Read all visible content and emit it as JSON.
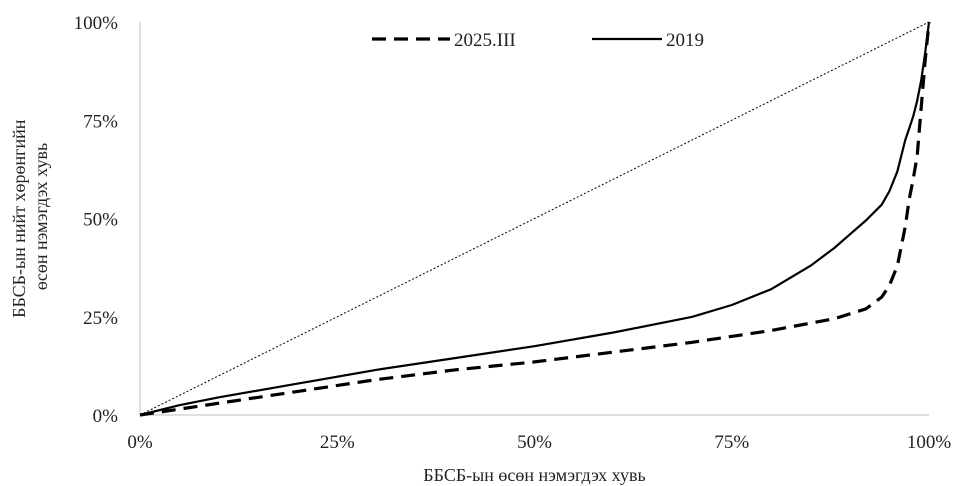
{
  "chart_data": {
    "type": "line",
    "title": "",
    "xlabel": "ББСБ-ын өсөн нэмэгдэх хувь",
    "ylabel": "ББСБ-ын нийт хөрөнгийн өсөн нэмэгдэх хувь",
    "xlim": [
      0,
      100
    ],
    "ylim": [
      0,
      100
    ],
    "x_ticks": [
      "0%",
      "25%",
      "50%",
      "75%",
      "100%"
    ],
    "y_ticks": [
      "0%",
      "25%",
      "50%",
      "75%",
      "100%"
    ],
    "grid": false,
    "legend_position": "top-center",
    "series": [
      {
        "name": "2025.III",
        "style": "dashed",
        "color": "#000000",
        "x": [
          0,
          5,
          10,
          20,
          30,
          40,
          50,
          60,
          70,
          80,
          88,
          92,
          94,
          95,
          96,
          97,
          97.5,
          98,
          98.5,
          99,
          99.5,
          100
        ],
        "y": [
          0,
          1.5,
          3,
          6,
          9,
          11.5,
          13.5,
          16,
          18.5,
          21.5,
          24.5,
          27,
          30,
          33,
          38,
          48,
          55,
          60,
          66,
          78,
          90,
          100
        ]
      },
      {
        "name": "2019",
        "style": "solid",
        "color": "#000000",
        "x": [
          0,
          5,
          10,
          20,
          30,
          40,
          50,
          60,
          70,
          75,
          80,
          85,
          88,
          90,
          92,
          94,
          95,
          96,
          97,
          97.5,
          98,
          98.5,
          99,
          99.5,
          100
        ],
        "y": [
          0,
          2.5,
          4.5,
          8,
          11.5,
          14.5,
          17.5,
          21,
          25,
          28,
          32,
          38,
          42.5,
          46,
          49.5,
          53.5,
          57,
          62,
          70,
          73,
          76,
          80,
          85,
          92,
          100
        ]
      },
      {
        "name": "",
        "style": "dotted",
        "color": "#000000",
        "x": [
          0,
          100
        ],
        "y": [
          0,
          100
        ]
      }
    ]
  }
}
